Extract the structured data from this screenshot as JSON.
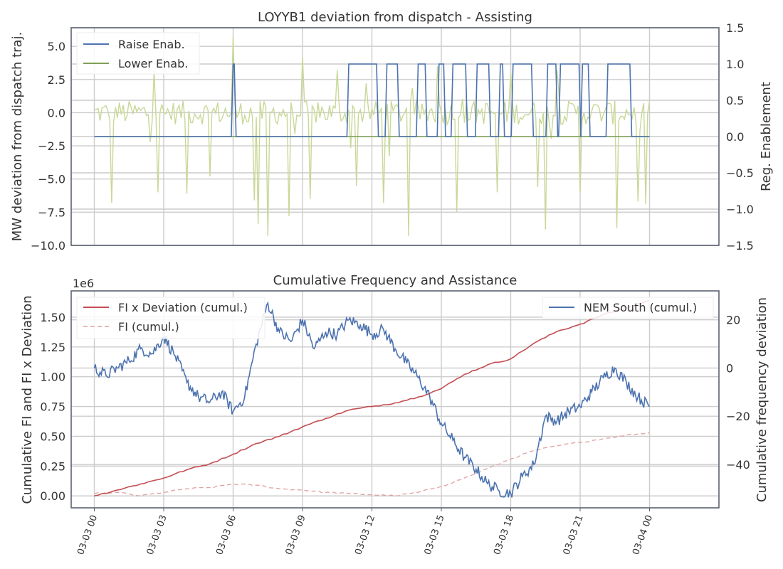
{
  "chart_data": [
    {
      "type": "line",
      "title": "LOYYB1 deviation from dispatch - Assisting",
      "ylabel": "MW deviation from dispatch traj.",
      "y2label": "Reg. Enablement",
      "ylim": [
        -10,
        6.4
      ],
      "yticks": [
        5.0,
        2.5,
        0.0,
        -2.5,
        -5.0,
        -7.5,
        -10.0
      ],
      "ytick_labels": [
        "5.0",
        "2.5",
        "0.0",
        "−2.5",
        "−5.0",
        "−7.5",
        "−10.0"
      ],
      "y2lim": [
        -1.5,
        1.5
      ],
      "y2ticks": [
        1.5,
        1.0,
        0.5,
        0.0,
        -0.5,
        -1.0,
        -1.5
      ],
      "y2tick_labels": [
        "1.5",
        "1.0",
        "0.5",
        "0.0",
        "−0.5",
        "−1.0",
        "−1.5"
      ],
      "xlim_hours": [
        -1,
        27
      ],
      "grid": true,
      "legend_position": "top-left",
      "series": [
        {
          "name": "Raise Enab.",
          "axis": "right",
          "color": "#4c72b0",
          "on_intervals_hours": [
            [
              6.0,
              6.05
            ],
            [
              11.0,
              12.2
            ],
            [
              12.65,
              13.1
            ],
            [
              14.0,
              14.3
            ],
            [
              14.9,
              15.1
            ],
            [
              15.5,
              16.05
            ],
            [
              16.55,
              17.05
            ],
            [
              17.55,
              17.65
            ],
            [
              18.1,
              18.9
            ],
            [
              19.6,
              19.95
            ],
            [
              20.15,
              20.95
            ],
            [
              21.1,
              21.35
            ],
            [
              22.2,
              23.15
            ]
          ],
          "on_value": 1.0,
          "off_value": 0.0
        },
        {
          "name": "Lower Enab.",
          "axis": "right",
          "color": "#7fa054",
          "constant_value": 0.0,
          "x_range_hours": [
            0,
            24
          ]
        },
        {
          "name": "",
          "axis": "left",
          "color": "#c8d898",
          "description": "5-min deviation trace, mostly between -1 and +1 MW with spikes",
          "spikes": [
            {
              "t": 6.0,
              "v": 5.7
            },
            {
              "t": 0.75,
              "v": -6.8
            },
            {
              "t": 2.75,
              "v": -6.0
            },
            {
              "t": 2.6,
              "v": 3.2
            },
            {
              "t": 4.0,
              "v": -6.1
            },
            {
              "t": 5.0,
              "v": -4.8
            },
            {
              "t": 6.9,
              "v": -6.6
            },
            {
              "t": 7.05,
              "v": -8.4
            },
            {
              "t": 7.5,
              "v": -9.3
            },
            {
              "t": 8.45,
              "v": -7.8
            },
            {
              "t": 9.0,
              "v": 4.2
            },
            {
              "t": 9.3,
              "v": -6.5
            },
            {
              "t": 10.5,
              "v": 3.2
            },
            {
              "t": 11.3,
              "v": -5.5
            },
            {
              "t": 12.5,
              "v": -6.8
            },
            {
              "t": 13.6,
              "v": -9.3
            },
            {
              "t": 14.8,
              "v": 3.5
            },
            {
              "t": 15.7,
              "v": -7.5
            },
            {
              "t": 17.4,
              "v": -6.0
            },
            {
              "t": 18.0,
              "v": 3.0
            },
            {
              "t": 19.2,
              "v": -5.6
            },
            {
              "t": 19.5,
              "v": -8.8
            },
            {
              "t": 20.0,
              "v": 3.2
            },
            {
              "t": 21.0,
              "v": -6.0
            },
            {
              "t": 22.6,
              "v": -8.7
            },
            {
              "t": 23.5,
              "v": -6.7
            },
            {
              "t": 23.8,
              "v": -6.9
            }
          ]
        }
      ]
    },
    {
      "type": "line",
      "title": "Cumulative Frequency and Assistance",
      "ylabel": "Cumulative FI and FI x Deviation",
      "y2label": "Cumulative frequency deviation",
      "y_scale_label": "1e6",
      "ylim": [
        -0.1,
        1.72
      ],
      "yticks": [
        0.0,
        0.25,
        0.5,
        0.75,
        1.0,
        1.25,
        1.5
      ],
      "ytick_labels": [
        "0.00",
        "0.25",
        "0.50",
        "0.75",
        "1.00",
        "1.25",
        "1.50"
      ],
      "y2lim": [
        -58,
        32
      ],
      "y2ticks": [
        20,
        0,
        -20,
        -40
      ],
      "y2tick_labels": [
        "20",
        "0",
        "−20",
        "−40"
      ],
      "xlim_hours": [
        -1,
        27
      ],
      "xticks_hours": [
        0,
        3,
        6,
        9,
        12,
        15,
        18,
        21,
        24
      ],
      "xtick_labels": [
        "03-03 00",
        "03-03 03",
        "03-03 06",
        "03-03 09",
        "03-03 12",
        "03-03 15",
        "03-03 18",
        "03-03 21",
        "03-04 00"
      ],
      "grid": true,
      "legends": [
        {
          "position": "top-left",
          "entries": [
            "FI x Deviation (cumul.)",
            "FI (cumul.)"
          ]
        },
        {
          "position": "top-right",
          "entries": [
            "NEM South (cumul.)"
          ]
        }
      ],
      "series": [
        {
          "name": "FI x Deviation (cumul.)",
          "axis": "left",
          "color": "#c44e52",
          "style": "solid",
          "x_hours": [
            0,
            1,
            2,
            3,
            4,
            5,
            6,
            7,
            8,
            9,
            10,
            11,
            12,
            13,
            14,
            15,
            16,
            17,
            18,
            19,
            20,
            21,
            22,
            23,
            24
          ],
          "values": [
            0.0,
            0.05,
            0.1,
            0.15,
            0.22,
            0.27,
            0.35,
            0.44,
            0.5,
            0.58,
            0.65,
            0.72,
            0.75,
            0.78,
            0.83,
            0.9,
            1.02,
            1.1,
            1.15,
            1.28,
            1.38,
            1.44,
            1.52,
            1.58,
            1.64
          ]
        },
        {
          "name": "FI (cumul.)",
          "axis": "left",
          "color": "#e0a0a0",
          "style": "dashed",
          "x_hours": [
            0,
            1,
            2,
            3,
            4,
            5,
            6,
            7,
            8,
            9,
            10,
            11,
            12,
            13,
            14,
            15,
            16,
            17,
            18,
            19,
            20,
            21,
            22,
            23,
            24
          ],
          "values": [
            0.02,
            0.03,
            0.0,
            0.03,
            0.06,
            0.07,
            0.1,
            0.09,
            0.06,
            0.05,
            0.03,
            0.02,
            0.01,
            0.0,
            0.03,
            0.08,
            0.15,
            0.23,
            0.31,
            0.38,
            0.42,
            0.45,
            0.48,
            0.51,
            0.53
          ]
        },
        {
          "name": "NEM South (cumul.)",
          "axis": "right",
          "color": "#4c72b0",
          "style": "solid",
          "x_hours": [
            0,
            0.5,
            1,
            1.5,
            2,
            2.5,
            3,
            3.5,
            4,
            4.5,
            5,
            5.5,
            6,
            6.5,
            7,
            7.5,
            8,
            8.5,
            9,
            9.5,
            10,
            10.5,
            11,
            11.5,
            12,
            12.5,
            13,
            13.5,
            14,
            14.5,
            15,
            15.5,
            16,
            16.5,
            17,
            17.5,
            18,
            18.5,
            19,
            19.5,
            20,
            20.5,
            21,
            21.5,
            22,
            22.5,
            23,
            23.5,
            24
          ],
          "values": [
            0,
            -3,
            0,
            3,
            8,
            6,
            13,
            5,
            -6,
            -12,
            -14,
            -10,
            -18,
            -12,
            10,
            27,
            15,
            11,
            20,
            8,
            15,
            14,
            20,
            18,
            14,
            16,
            8,
            2,
            -4,
            -12,
            -23,
            -30,
            -37,
            -42,
            -48,
            -51,
            -52,
            -45,
            -40,
            -20,
            -22,
            -18,
            -16,
            -10,
            -4,
            0,
            -6,
            -12,
            -16
          ]
        }
      ]
    }
  ]
}
